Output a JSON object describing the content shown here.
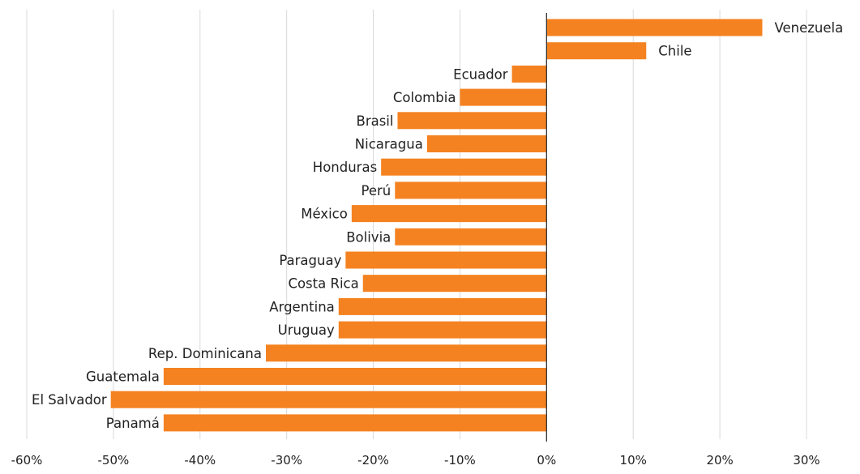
{
  "chart_data": {
    "type": "bar",
    "orientation": "horizontal",
    "title": "",
    "xlabel": "",
    "ylabel": "",
    "xlim": [
      -60,
      30
    ],
    "x_ticks": [
      -60,
      -50,
      -40,
      -30,
      -20,
      -10,
      0,
      10,
      20,
      30
    ],
    "x_tick_labels": [
      "-60%",
      "-50%",
      "-40%",
      "-30%",
      "-20%",
      "-10%",
      "0%",
      "10%",
      "20%",
      "30%"
    ],
    "grid": "vertical",
    "legend": "none",
    "bar_color": "#F58220",
    "grid_color": "#D9D9D9",
    "zero_line_color": "#333333",
    "label_color": "#222222",
    "categories": [
      "Venezuela",
      "Chile",
      "Ecuador",
      "Colombia",
      "Brasil",
      "Nicaragua",
      "Honduras",
      "Perú",
      "México",
      "Bolivia",
      "Paraguay",
      "Costa Rica",
      "Argentina",
      "Uruguay",
      "Rep. Dominicana",
      "Guatemala",
      "El Salvador",
      "Panamá"
    ],
    "values": [
      24.9,
      11.5,
      -4.0,
      -10.0,
      -17.2,
      -13.8,
      -19.1,
      -17.5,
      -22.5,
      -17.5,
      -23.2,
      -21.2,
      -24.0,
      -24.0,
      -32.4,
      -44.2,
      -50.3,
      -44.2
    ]
  }
}
